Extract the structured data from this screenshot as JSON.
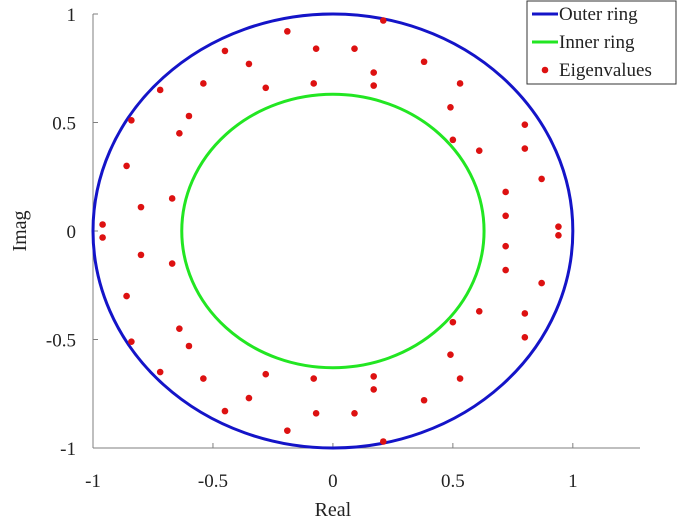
{
  "chart_data": {
    "type": "scatter",
    "xlabel": "Real",
    "ylabel": "Imag",
    "xlim": [
      -1.0,
      1.28
    ],
    "ylim": [
      -1.0,
      1.0
    ],
    "xticks": [
      {
        "value": -1,
        "label": "-1"
      },
      {
        "value": -0.5,
        "label": "-0.5"
      },
      {
        "value": 0,
        "label": "0"
      },
      {
        "value": 0.5,
        "label": "0.5"
      },
      {
        "value": 1,
        "label": "1"
      }
    ],
    "yticks": [
      {
        "value": 1,
        "label": "1"
      },
      {
        "value": 0.5,
        "label": "0.5"
      },
      {
        "value": 0,
        "label": "0"
      },
      {
        "value": -0.5,
        "label": "-0.5"
      },
      {
        "value": -1,
        "label": "-1"
      }
    ],
    "grid": false,
    "legend_position": "top-right",
    "legend": [
      {
        "label": "Outer ring",
        "color": "#1414c8",
        "marker": "line"
      },
      {
        "label": "Inner ring",
        "color": "#22e622",
        "marker": "line"
      },
      {
        "label": "Eigenvalues",
        "color": "#dd1111",
        "marker": "dot"
      }
    ],
    "series": [
      {
        "name": "Outer ring",
        "kind": "circle",
        "center": [
          0,
          0
        ],
        "radius": 1.0,
        "color": "#1414c8"
      },
      {
        "name": "Inner ring",
        "kind": "circle",
        "center": [
          0,
          0
        ],
        "radius": 0.63,
        "color": "#22e622"
      },
      {
        "name": "Eigenvalues",
        "kind": "points",
        "color": "#dd1111",
        "points": [
          [
            0.21,
            0.97
          ],
          [
            0.21,
            -0.97
          ],
          [
            -0.19,
            0.92
          ],
          [
            -0.19,
            -0.92
          ],
          [
            -0.45,
            0.83
          ],
          [
            -0.45,
            -0.83
          ],
          [
            -0.07,
            0.84
          ],
          [
            -0.07,
            -0.84
          ],
          [
            0.09,
            0.84
          ],
          [
            0.09,
            -0.84
          ],
          [
            -0.35,
            0.77
          ],
          [
            -0.35,
            -0.77
          ],
          [
            0.38,
            0.78
          ],
          [
            0.38,
            -0.78
          ],
          [
            0.17,
            0.73
          ],
          [
            0.17,
            -0.73
          ],
          [
            -0.72,
            0.65
          ],
          [
            -0.72,
            -0.65
          ],
          [
            -0.54,
            0.68
          ],
          [
            -0.54,
            -0.68
          ],
          [
            -0.08,
            0.68
          ],
          [
            -0.08,
            -0.68
          ],
          [
            0.17,
            0.67
          ],
          [
            0.17,
            -0.67
          ],
          [
            -0.28,
            0.66
          ],
          [
            -0.28,
            -0.66
          ],
          [
            0.53,
            0.68
          ],
          [
            0.53,
            -0.68
          ],
          [
            0.49,
            0.57
          ],
          [
            0.49,
            -0.57
          ],
          [
            -0.6,
            0.53
          ],
          [
            -0.6,
            -0.53
          ],
          [
            -0.84,
            0.51
          ],
          [
            -0.84,
            -0.51
          ],
          [
            0.8,
            0.49
          ],
          [
            0.8,
            -0.49
          ],
          [
            -0.64,
            0.45
          ],
          [
            -0.64,
            -0.45
          ],
          [
            0.5,
            0.42
          ],
          [
            0.5,
            -0.42
          ],
          [
            0.8,
            0.38
          ],
          [
            0.8,
            -0.38
          ],
          [
            0.61,
            0.37
          ],
          [
            0.61,
            -0.37
          ],
          [
            -0.86,
            0.3
          ],
          [
            -0.86,
            -0.3
          ],
          [
            0.87,
            0.24
          ],
          [
            0.87,
            -0.24
          ],
          [
            0.72,
            0.18
          ],
          [
            0.72,
            -0.18
          ],
          [
            -0.67,
            0.15
          ],
          [
            -0.67,
            -0.15
          ],
          [
            -0.8,
            0.11
          ],
          [
            -0.8,
            -0.11
          ],
          [
            0.72,
            0.07
          ],
          [
            0.72,
            -0.07
          ],
          [
            -0.96,
            0.03
          ],
          [
            -0.96,
            -0.03
          ],
          [
            0.94,
            0.02
          ],
          [
            0.94,
            -0.02
          ]
        ]
      }
    ]
  }
}
